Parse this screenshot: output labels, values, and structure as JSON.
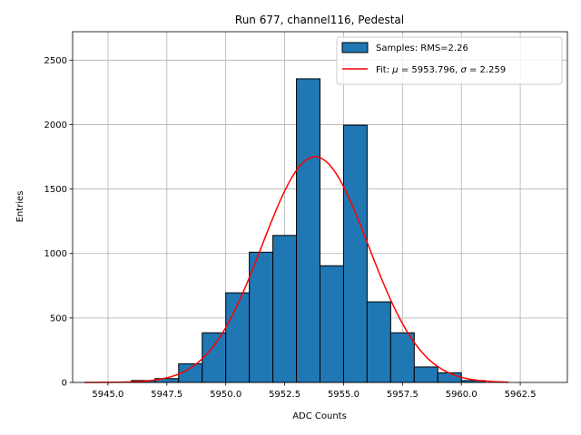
{
  "chart_data": {
    "type": "bar",
    "title": "Run 677, channel116, Pedestal",
    "xlabel": "ADC Counts",
    "ylabel": "Entries",
    "xlim": [
      5943.5,
      5964.5
    ],
    "ylim": [
      0,
      2720
    ],
    "grid": true,
    "legend_position": "top-right",
    "xticks": [
      5945.0,
      5947.5,
      5950.0,
      5952.5,
      5955.0,
      5957.5,
      5960.0,
      5962.5
    ],
    "xtick_labels": [
      "5945.0",
      "5947.5",
      "5950.0",
      "5952.5",
      "5955.0",
      "5957.5",
      "5960.0",
      "5962.5"
    ],
    "yticks": [
      0,
      500,
      1000,
      1500,
      2000,
      2500
    ],
    "ytick_labels": [
      "0",
      "500",
      "1000",
      "1500",
      "2000",
      "2500"
    ],
    "histogram": {
      "name": "Samples: RMS=2.26",
      "color": "#1f77b4",
      "bin_edges": [
        5946.0,
        5947.0,
        5948.0,
        5949.0,
        5950.0,
        5951.0,
        5952.0,
        5953.0,
        5954.0,
        5955.0,
        5956.0,
        5957.0,
        5958.0,
        5959.0,
        5960.0,
        5961.0
      ],
      "counts": [
        15,
        30,
        145,
        385,
        695,
        1010,
        1140,
        2355,
        905,
        1995,
        625,
        385,
        120,
        75,
        15
      ]
    },
    "fit": {
      "name_prefix": "Fit: ",
      "name_mu": "μ",
      "name_mid": " = 5953.796, ",
      "name_sigma": "σ",
      "name_end": " = 2.259",
      "color": "#ff0000",
      "mu": 5953.796,
      "sigma": 2.259,
      "amplitude": 1750,
      "x_range": [
        5944.0,
        5962.0
      ]
    }
  }
}
